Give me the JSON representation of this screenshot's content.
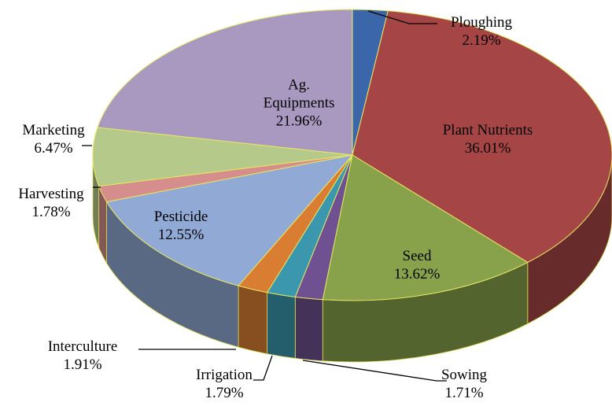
{
  "chart_data": {
    "type": "pie3d",
    "categories": [
      "Ploughing",
      "Plant Nutrients",
      "Seed",
      "Sowing",
      "Irrigation",
      "Interculture",
      "Pesticide",
      "Harvesting",
      "Marketing",
      "Ag. Equipments"
    ],
    "values": [
      2.19,
      36.01,
      13.62,
      1.71,
      1.79,
      1.91,
      12.55,
      1.78,
      6.47,
      21.96
    ],
    "value_labels": [
      "2.19%",
      "36.01%",
      "13.62%",
      "1.71%",
      "1.79%",
      "1.91%",
      "12.55%",
      "1.78%",
      "6.47%",
      "21.96%"
    ],
    "colors": [
      "#3b66a9",
      "#a64545",
      "#87a24b",
      "#6f5090",
      "#3a97ae",
      "#d97d33",
      "#90a9d5",
      "#d58e8b",
      "#b5c98b",
      "#a999c1"
    ]
  }
}
